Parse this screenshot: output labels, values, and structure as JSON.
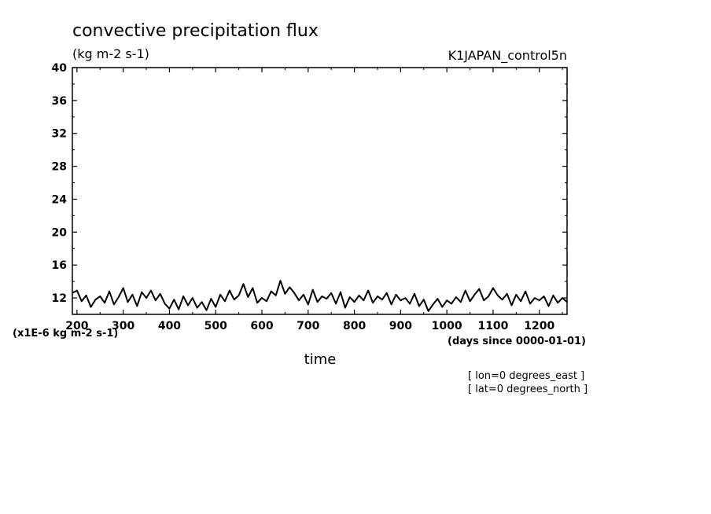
{
  "chart_data": {
    "type": "line",
    "title": "convective precipitation flux",
    "units": "(kg m-2 s-1)",
    "dataset": "K1JAPAN_control5n",
    "xlabel": "time",
    "x_units": "(days since 0000-01-01)",
    "y_scale_note": "(x1E-6 kg m-2 s-1)",
    "xlim": [
      190,
      1260
    ],
    "ylim": [
      10,
      40
    ],
    "x_tick_labels": [
      "200",
      "300",
      "400",
      "500",
      "600",
      "700",
      "800",
      "900",
      "1000",
      "1100",
      "1200"
    ],
    "y_tick_labels": [
      "12",
      "16",
      "20",
      "24",
      "28",
      "32",
      "36",
      "40"
    ],
    "grid": false,
    "series": [
      {
        "x": [
          190,
          200,
          210,
          220,
          230,
          240,
          250,
          260,
          270,
          280,
          290,
          300,
          310,
          320,
          330,
          340,
          350,
          360,
          370,
          380,
          390,
          400,
          410,
          420,
          430,
          440,
          450,
          460,
          470,
          480,
          490,
          500,
          510,
          520,
          530,
          540,
          550,
          560,
          570,
          580,
          590,
          600,
          610,
          620,
          630,
          640,
          650,
          660,
          670,
          680,
          690,
          700,
          710,
          720,
          730,
          740,
          750,
          760,
          770,
          780,
          790,
          800,
          810,
          820,
          830,
          840,
          850,
          860,
          870,
          880,
          890,
          900,
          910,
          920,
          930,
          940,
          950,
          960,
          970,
          980,
          990,
          1000,
          1010,
          1020,
          1030,
          1040,
          1050,
          1060,
          1070,
          1080,
          1090,
          1100,
          1110,
          1120,
          1130,
          1140,
          1150,
          1160,
          1170,
          1180,
          1190,
          1200,
          1210,
          1220,
          1230,
          1240,
          1250,
          1260
        ],
        "values": [
          12.6,
          12.9,
          11.6,
          12.3,
          10.9,
          11.8,
          12.2,
          11.4,
          12.8,
          11.2,
          12.1,
          13.2,
          11.5,
          12.4,
          11.0,
          12.7,
          12.0,
          12.9,
          11.7,
          12.5,
          11.3,
          10.7,
          11.8,
          10.6,
          12.2,
          11.1,
          12.0,
          10.8,
          11.5,
          10.5,
          11.9,
          10.9,
          12.4,
          11.6,
          12.9,
          11.8,
          12.3,
          13.7,
          12.1,
          13.2,
          11.4,
          12.0,
          11.6,
          12.8,
          12.3,
          14.1,
          12.5,
          13.3,
          12.6,
          11.7,
          12.4,
          11.2,
          13.0,
          11.5,
          12.2,
          11.9,
          12.6,
          11.3,
          12.7,
          10.8,
          12.1,
          11.5,
          12.3,
          11.7,
          12.9,
          11.4,
          12.2,
          11.8,
          12.6,
          11.2,
          12.4,
          11.7,
          12.0,
          11.3,
          12.5,
          11.0,
          11.8,
          10.4,
          11.2,
          11.9,
          10.9,
          11.7,
          11.3,
          12.1,
          11.5,
          12.9,
          11.6,
          12.4,
          13.1,
          11.7,
          12.2,
          13.2,
          12.3,
          11.8,
          12.5,
          11.1,
          12.4,
          11.6,
          12.8,
          11.3,
          12.0,
          11.7,
          12.2,
          11.0,
          12.3,
          11.4,
          12.0,
          11.5
        ]
      }
    ]
  },
  "annotations": {
    "lon": "[ lon=0 degrees_east ]",
    "lat": "[ lat=0 degrees_north ]"
  }
}
